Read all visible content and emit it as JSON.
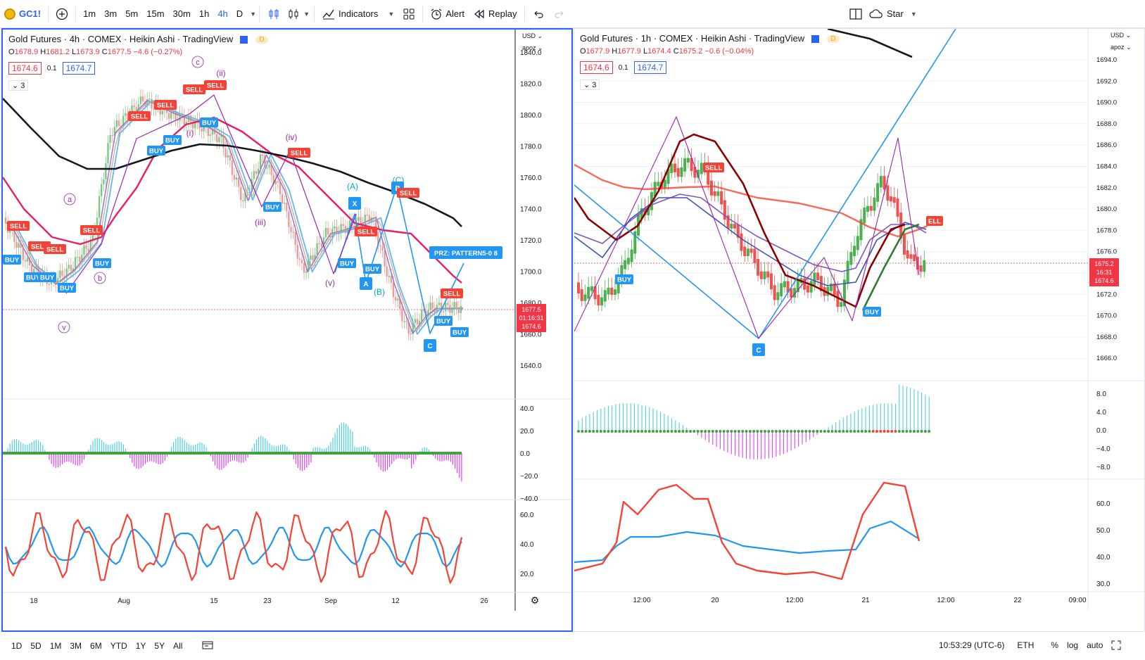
{
  "toolbar": {
    "symbol": "GC1!",
    "timeframes": [
      "1m",
      "3m",
      "5m",
      "15m",
      "30m",
      "1h",
      "4h",
      "D"
    ],
    "active_timeframe": "4h",
    "indicators_label": "Indicators",
    "alert_label": "Alert",
    "replay_label": "Replay",
    "layout_label": "Star"
  },
  "left_chart": {
    "title": "Gold Futures · 4h · COMEX · Heikin Ashi · TradingView",
    "o_label": "O",
    "o": "1678.9",
    "h_label": "H",
    "h": "1681.2",
    "l_label": "L",
    "l": "1673.9",
    "c_label": "C",
    "c": "1677.5",
    "change": "−4.6 (−0.27%)",
    "bid": "1674.6",
    "spread": "0.1",
    "ask": "1674.7",
    "indicator_count": "3",
    "currency": "USD",
    "scale_mode": "apoz",
    "price_ticks": [
      "1840.0",
      "1820.0",
      "1800.0",
      "1780.0",
      "1760.0",
      "1740.0",
      "1720.0",
      "1700.0",
      "1680.0",
      "1660.0",
      "1640.0"
    ],
    "price_tag": [
      "1677.5",
      "01:16:31",
      "1674.6"
    ],
    "osc_ticks": [
      "40.0",
      "20.0",
      "0.0",
      "−20.0",
      "−40.0"
    ],
    "rsi_ticks": [
      "60.0",
      "40.0",
      "20.0"
    ],
    "time_labels": [
      "18",
      "Aug",
      "15",
      "23",
      "Sep",
      "12",
      "26"
    ],
    "prz_label": "PRZ: PATTERN5-0 8",
    "wave_labels": [
      "a",
      "b",
      "c",
      "v",
      "(ii)",
      "(i)",
      "(iii)",
      "(iv)",
      "(v)",
      "(A)",
      "(B)",
      "(C)"
    ],
    "pattern_points": [
      "X",
      "A",
      "B",
      "C"
    ],
    "buy_label": "BUY",
    "sell_label": "SELL"
  },
  "right_chart": {
    "title": "Gold Futures · 1h · COMEX · Heikin Ashi · TradingView",
    "o_label": "O",
    "o": "1677.9",
    "h_label": "H",
    "h": "1677.9",
    "l_label": "L",
    "l": "1674.4",
    "c_label": "C",
    "c": "1675.2",
    "change": "−0.6 (−0.04%)",
    "bid": "1674.6",
    "spread": "0.1",
    "ask": "1674.7",
    "indicator_count": "3",
    "currency": "USD",
    "scale_mode": "apoz",
    "price_ticks": [
      "1694.0",
      "1692.0",
      "1690.0",
      "1688.0",
      "1686.0",
      "1684.0",
      "1682.0",
      "1680.0",
      "1678.0",
      "1676.0",
      "1674.0",
      "1672.0",
      "1670.0",
      "1668.0",
      "1666.0"
    ],
    "price_tag": [
      "1675.2",
      "16:31",
      "1674.6"
    ],
    "osc_ticks": [
      "8.0",
      "4.0",
      "0.0",
      "−4.0",
      "−8.0"
    ],
    "rsi_ticks": [
      "60.0",
      "50.0",
      "40.0",
      "30.0"
    ],
    "time_labels": [
      "12:00",
      "20",
      "12:00",
      "21",
      "12:00",
      "22",
      "09:00"
    ],
    "buy_label": "BUY",
    "sell_label": "ELL",
    "point_c": "C"
  },
  "bottombar": {
    "ranges": [
      "1D",
      "5D",
      "1M",
      "3M",
      "6M",
      "YTD",
      "1Y",
      "5Y",
      "All"
    ],
    "clock": "10:53:29 (UTC-6)",
    "session": "ETH",
    "percent": "%",
    "log": "log",
    "auto": "auto"
  },
  "colors": {
    "accent": "#2962ff",
    "up": "#26a69a",
    "down": "#f23645",
    "buy": "#2196f3",
    "sell": "#f44336",
    "wave": "#9c27b0"
  }
}
